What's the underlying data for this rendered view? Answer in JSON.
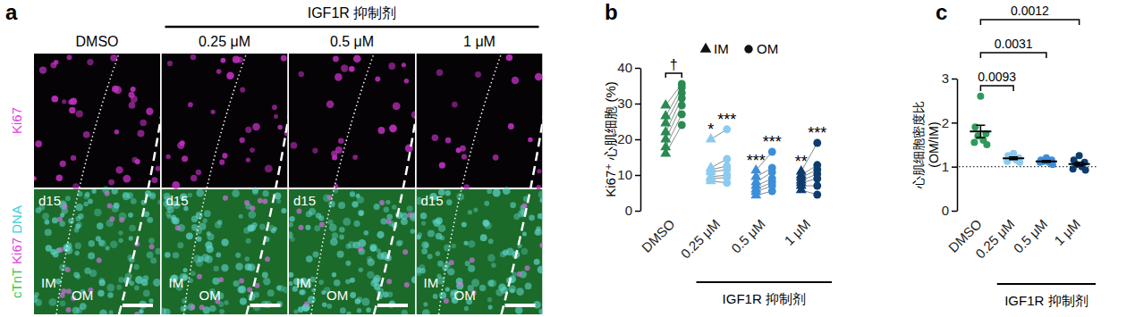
{
  "chart_data": [
    {
      "type": "image",
      "label": "a",
      "title": "IGF1R 抑制剂",
      "columns": [
        "DMSO",
        "0.25 μM",
        "0.5 μM",
        "1 μM"
      ],
      "rows": [
        {
          "labels": [
            {
              "text": "Ki67",
              "color": "#e040e0"
            }
          ]
        },
        {
          "labels": [
            {
              "text": "cTnT",
              "color": "#3cc83c"
            },
            {
              "text": "Ki67",
              "color": "#e040e0"
            },
            {
              "text": "DNA",
              "color": "#40d0d8"
            }
          ],
          "stage": "d15",
          "regions": [
            "IM",
            "OM"
          ]
        }
      ]
    },
    {
      "type": "scatter",
      "label": "b",
      "categories": [
        "DMSO",
        "0.25 μM",
        "0.5 μM",
        "1 μM"
      ],
      "x_label": "IGF1R 抑制剂",
      "y_label": "Ki67⁺ 心肌细胞 (%)",
      "ylim": [
        0,
        40
      ],
      "yticks": [
        0,
        10,
        20,
        30,
        40
      ],
      "colors": [
        "#2a8a50",
        "#8ccbef",
        "#3d8ed8",
        "#0e3c6e"
      ],
      "legend": "top-left",
      "series": [
        {
          "name": "IM",
          "marker": "triangle",
          "values": [
            [
              29.5,
              26.5,
              24.5,
              22,
              20,
              17.8,
              16
            ],
            [
              20,
              12,
              11.5,
              10.8,
              9.5,
              9,
              8.3
            ],
            [
              11.3,
              9.5,
              8,
              7,
              6,
              5.3,
              4.3
            ],
            [
              11,
              10,
              9.3,
              8.5,
              7.8,
              7,
              5.8
            ]
          ]
        },
        {
          "name": "OM",
          "marker": "circle",
          "values": [
            [
              35.5,
              34.5,
              33,
              31.5,
              29.5,
              27,
              24
            ],
            [
              22.8,
              14.5,
              12.5,
              11.5,
              10,
              9.3,
              7.8
            ],
            [
              16.5,
              12,
              10.8,
              9,
              8,
              7,
              5.5
            ],
            [
              19,
              12.8,
              11.5,
              10.3,
              9,
              7,
              4.5
            ]
          ]
        }
      ],
      "annotations": [
        {
          "category": "DMSO",
          "text": "†"
        },
        {
          "category": "0.25 μM",
          "series": "IM",
          "text": "*"
        },
        {
          "category": "0.25 μM",
          "series": "OM",
          "text": "***"
        },
        {
          "category": "0.5 μM",
          "series": "IM",
          "text": "***"
        },
        {
          "category": "0.5 μM",
          "series": "OM",
          "text": "***"
        },
        {
          "category": "1 μM",
          "series": "IM",
          "text": "**"
        },
        {
          "category": "1 μM",
          "series": "OM",
          "text": "***"
        }
      ]
    },
    {
      "type": "dot",
      "label": "c",
      "categories": [
        "DMSO",
        "0.25 μM",
        "0.5 μM",
        "1 μM"
      ],
      "x_label": "IGF1R 抑制剂",
      "y_label": [
        "心肌细胞密度比",
        "(OM/IM)"
      ],
      "ylim": [
        0,
        3
      ],
      "yticks": [
        0,
        1,
        2,
        3
      ],
      "colors": [
        "#2e9a5c",
        "#8ccbef",
        "#3d8ed8",
        "#0e3c6e"
      ],
      "values": [
        [
          2.6,
          1.9,
          1.75,
          1.7,
          1.6,
          1.55,
          1.5
        ],
        [
          1.3,
          1.25,
          1.2,
          1.2,
          1.15,
          1.12,
          1.1
        ],
        [
          1.2,
          1.15,
          1.15,
          1.12,
          1.1,
          1.1,
          1.05
        ],
        [
          1.25,
          1.15,
          1.1,
          1.05,
          1.0,
          0.95,
          0.92
        ]
      ],
      "mean": [
        1.8,
        1.19,
        1.12,
        1.06
      ],
      "sem": [
        0.14,
        0.03,
        0.02,
        0.04
      ],
      "reference_line": 1,
      "line_style": "dotted",
      "comparisons": [
        {
          "from": "DMSO",
          "to": "0.25 μM",
          "p": 0.0093
        },
        {
          "from": "DMSO",
          "to": "0.5 μM",
          "p": 0.0031
        },
        {
          "from": "DMSO",
          "to": "1 μM",
          "p": 0.0012
        }
      ]
    }
  ]
}
